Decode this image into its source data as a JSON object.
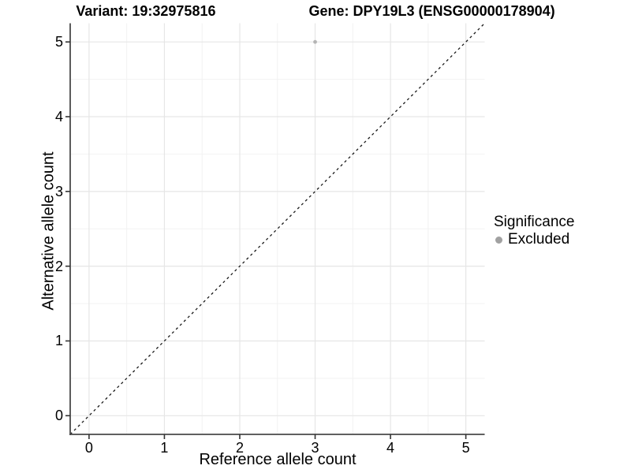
{
  "header": {
    "title_left": "Variant: 19:32975816",
    "title_right": "Gene: DPY19L3 (ENSG00000178904)"
  },
  "chart_data": {
    "type": "scatter",
    "title": "Variant: 19:32975816   Gene: DPY19L3 (ENSG00000178904)",
    "xlabel": "Reference allele count",
    "ylabel": "Alternative allele count",
    "xlim": [
      -0.25,
      5.25
    ],
    "ylim": [
      -0.25,
      5.25
    ],
    "xticks": [
      0,
      1,
      2,
      3,
      4,
      5
    ],
    "yticks": [
      0,
      1,
      2,
      3,
      4,
      5
    ],
    "grid": {
      "major": true,
      "minor": true
    },
    "series": [
      {
        "name": "Excluded",
        "color": "#b5b5b5",
        "point_radius": 2.4,
        "points": [
          {
            "x": 3,
            "y": 5
          }
        ]
      }
    ],
    "reference_line": {
      "type": "identity",
      "style": "dashed",
      "from": [
        -0.25,
        -0.25
      ],
      "to": [
        5.25,
        5.25
      ],
      "color": "#1a1a1a"
    },
    "legend": {
      "title": "Significance",
      "position": "right",
      "items": [
        {
          "label": "Excluded",
          "color": "#a1a1a1"
        }
      ]
    }
  },
  "colors": {
    "background": "#ffffff",
    "grid_major": "#e6e6e6",
    "grid_minor": "#f2f2f2",
    "axis_line": "#4a4a4a",
    "tick_mark": "#333333",
    "text": "#000000"
  }
}
